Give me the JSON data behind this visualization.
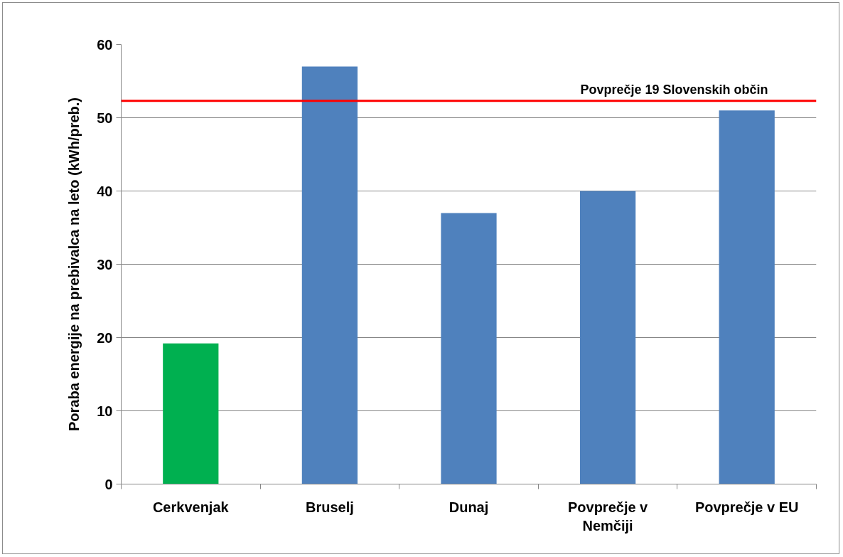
{
  "chart_data": {
    "type": "bar",
    "ylabel": "Poraba energije na prebivalca na leto (kWh/preb.)",
    "categories": [
      "Cerkvenjak",
      "Bruselj",
      "Dunaj",
      "Povprečje v Nemčiji",
      "Povprečje v EU"
    ],
    "values": [
      19.2,
      57,
      37,
      40,
      51
    ],
    "colors": [
      "#00b050",
      "#4f81bd",
      "#4f81bd",
      "#4f81bd",
      "#4f81bd"
    ],
    "ylim": [
      0,
      60
    ],
    "yticks": [
      0,
      10,
      20,
      30,
      40,
      50,
      60
    ],
    "grid": "y",
    "ref_lines": [
      {
        "axis": "y",
        "value": 52.3,
        "label": "Povprečje 19 Slovenskih občin",
        "color": "#ff0000"
      }
    ]
  }
}
